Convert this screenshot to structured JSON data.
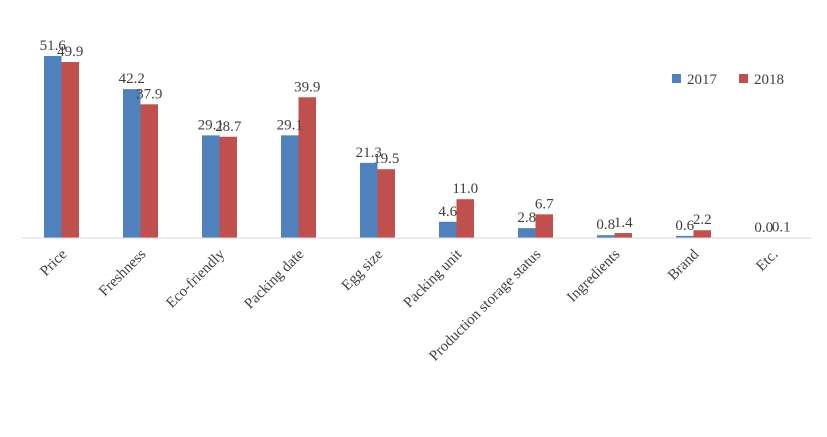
{
  "chart_data": {
    "type": "bar",
    "categories": [
      "Price",
      "Freshness",
      "Eco-friendly",
      "Packing date",
      "Egg size",
      "Packing unit",
      "Production storage status",
      "Ingredients",
      "Brand",
      "Etc."
    ],
    "series": [
      {
        "name": "2017",
        "color": "#4f81bd",
        "values": [
          51.6,
          42.2,
          29.1,
          29.1,
          21.3,
          4.6,
          2.8,
          0.8,
          0.6,
          0.0
        ]
      },
      {
        "name": "2018",
        "color": "#c0504d",
        "values": [
          49.9,
          37.9,
          28.7,
          39.9,
          19.5,
          11.0,
          6.7,
          1.4,
          2.2,
          0.1
        ]
      }
    ],
    "value_labels": [
      [
        "51.6",
        "42.2",
        "29.1",
        "29.1",
        "21.3",
        "4.6",
        "2.8",
        "0.8",
        "0.6",
        "0.0"
      ],
      [
        "49.9",
        "37.9",
        "28.7",
        "39.9",
        "19.5",
        "11.0",
        "6.7",
        "1.4",
        "2.2",
        "0.1"
      ]
    ],
    "title": "",
    "xlabel": "",
    "ylabel": "",
    "ylim": [
      0,
      52
    ],
    "grid": false,
    "legend_position": "top-right"
  }
}
